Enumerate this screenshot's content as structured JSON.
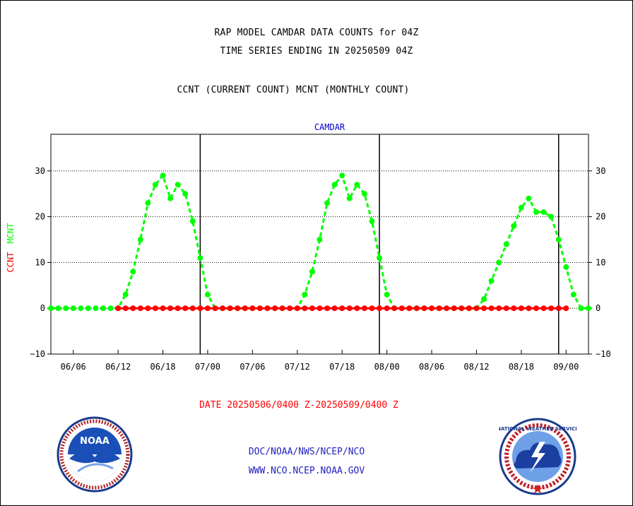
{
  "header": {
    "title_line1": "RAP MODEL CAMDAR DATA COUNTS for 04Z",
    "title_line2": "TIME SERIES ENDING IN 20250509 04Z",
    "title_line3": "CCNT (CURRENT COUNT) MCNT (MONTHLY COUNT)"
  },
  "footer": {
    "date_range": "DATE 20250506/0400 Z-20250509/0400 Z",
    "credit_line1": "DOC/NOAA/NWS/NCEP/NCO",
    "credit_line2": "WWW.NCO.NCEP.NOAA.GOV"
  },
  "logos": {
    "noaa": "NOAA",
    "nws": "NATIONAL WEATHER SERVICE"
  },
  "colors": {
    "ccnt": "#ff0000",
    "mcnt": "#00ff00",
    "panel_title": "#0000cc"
  },
  "chart_data": {
    "type": "line",
    "title": "CAMDAR",
    "ylabel_left_parts": [
      "CCNT",
      "MCNT"
    ],
    "ylim": [
      -10,
      38
    ],
    "yticks": [
      -10,
      0,
      10,
      20,
      30
    ],
    "xlim": [
      0,
      72
    ],
    "x_tick_hours": [
      3,
      9,
      15,
      21,
      27,
      33,
      39,
      45,
      51,
      57,
      63,
      69
    ],
    "x_tick_labels": [
      "06/06",
      "06/12",
      "06/18",
      "07/00",
      "07/06",
      "07/12",
      "07/18",
      "08/00",
      "08/06",
      "08/12",
      "08/18",
      "09/00"
    ],
    "day_boundaries_hours": [
      20,
      44,
      68
    ],
    "grid": "y-dotted",
    "x": [
      0,
      1,
      2,
      3,
      4,
      5,
      6,
      7,
      8,
      9,
      10,
      11,
      12,
      13,
      14,
      15,
      16,
      17,
      18,
      19,
      20,
      21,
      22,
      23,
      24,
      25,
      26,
      27,
      28,
      29,
      30,
      31,
      32,
      33,
      34,
      35,
      36,
      37,
      38,
      39,
      40,
      41,
      42,
      43,
      44,
      45,
      46,
      47,
      48,
      49,
      50,
      51,
      52,
      53,
      54,
      55,
      56,
      57,
      58,
      59,
      60,
      61,
      62,
      63,
      64,
      65,
      66,
      67,
      68,
      69,
      70,
      71,
      72
    ],
    "series": [
      {
        "name": "CCNT",
        "values": [
          0,
          0,
          0,
          0,
          0,
          0,
          0,
          0,
          0,
          0,
          0,
          0,
          0,
          0,
          0,
          0,
          0,
          0,
          0,
          0,
          0,
          0,
          0,
          0,
          0,
          0,
          0,
          0,
          0,
          0,
          0,
          0,
          0,
          0,
          0,
          0,
          0,
          0,
          0,
          0,
          0,
          0,
          0,
          0,
          0,
          0,
          0,
          0,
          0,
          0,
          0,
          0,
          0,
          0,
          0,
          0,
          0,
          0,
          0,
          0,
          0,
          0,
          0,
          0,
          0,
          0,
          0,
          0,
          0,
          0,
          0,
          0,
          0
        ],
        "drawn_from_hour": 9,
        "drawn_to_hour": 69
      },
      {
        "name": "MCNT",
        "values": [
          0,
          0,
          0,
          0,
          0,
          0,
          0,
          0,
          0,
          0,
          3,
          8,
          15,
          23,
          27,
          29,
          24,
          27,
          25,
          19,
          11,
          3,
          0,
          0,
          0,
          0,
          0,
          0,
          0,
          0,
          0,
          0,
          0,
          0,
          3,
          8,
          15,
          23,
          27,
          29,
          24,
          27,
          25,
          19,
          11,
          3,
          0,
          0,
          0,
          0,
          0,
          0,
          0,
          0,
          0,
          0,
          0,
          0,
          2,
          6,
          10,
          14,
          18,
          22,
          24,
          21,
          21,
          20,
          15,
          9,
          3,
          0,
          0
        ]
      }
    ]
  }
}
